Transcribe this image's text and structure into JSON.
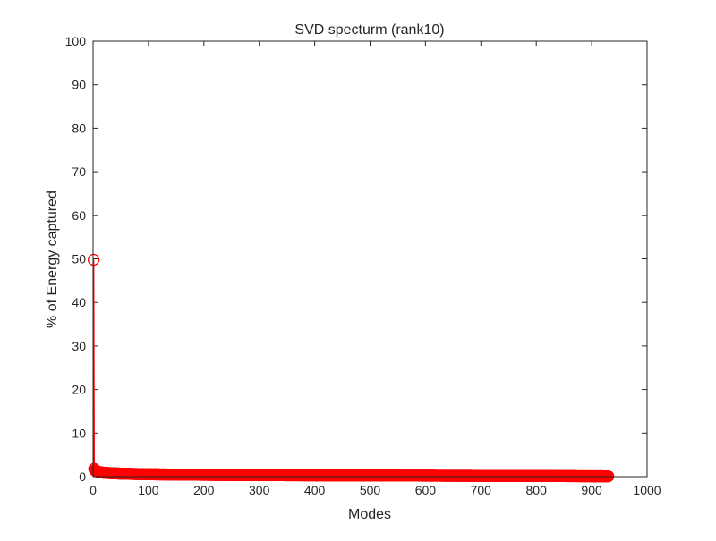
{
  "chart_data": {
    "type": "line",
    "title": "SVD specturm (rank10)",
    "xlabel": "Modes",
    "ylabel": "% of Energy captured",
    "xlim": [
      0,
      1000
    ],
    "ylim": [
      0,
      100
    ],
    "xticks": [
      0,
      100,
      200,
      300,
      400,
      500,
      600,
      700,
      800,
      900,
      1000
    ],
    "yticks": [
      0,
      10,
      20,
      30,
      40,
      50,
      60,
      70,
      80,
      90,
      100
    ],
    "grid": false,
    "box": true,
    "series": [
      {
        "color": "#ff0000",
        "marker": "circle-open",
        "point_count": 930,
        "first_point": [
          1,
          49.8
        ],
        "second_point": [
          2,
          1.8
        ],
        "tail_sample": [
          [
            3,
            1.5
          ],
          [
            5,
            1.3
          ],
          [
            10,
            1.1
          ],
          [
            20,
            0.9
          ],
          [
            50,
            0.7
          ],
          [
            100,
            0.55
          ],
          [
            200,
            0.42
          ],
          [
            400,
            0.3
          ],
          [
            600,
            0.22
          ],
          [
            800,
            0.15
          ],
          [
            930,
            0.08
          ]
        ]
      }
    ],
    "tick_label_color": "#262626",
    "axes_color": "#262626"
  }
}
